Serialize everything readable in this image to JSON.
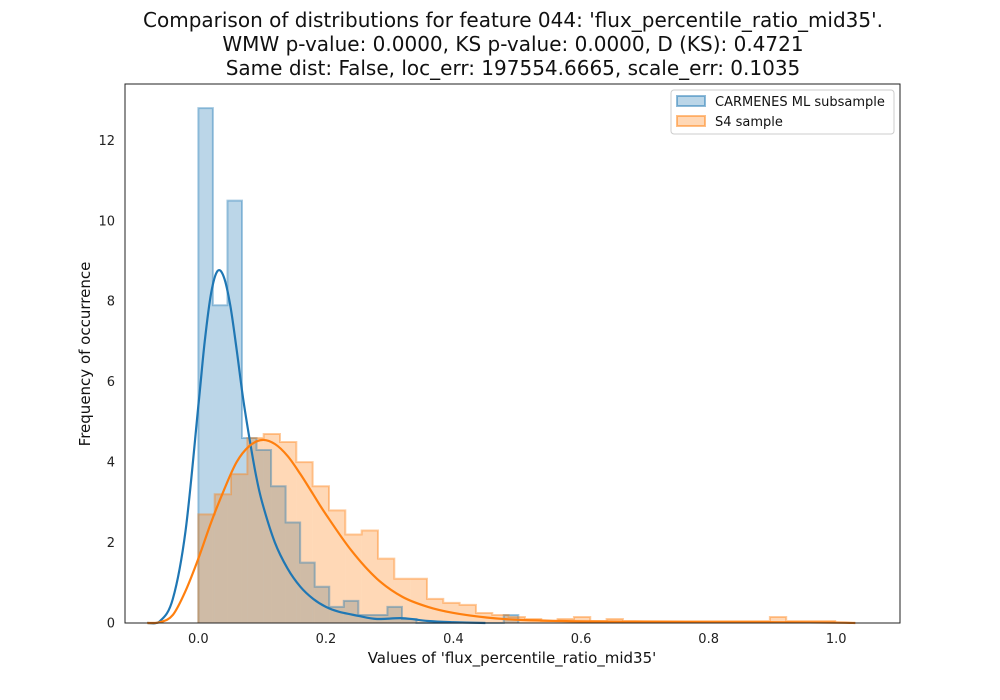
{
  "chart_data": {
    "type": "histogram",
    "title_lines": [
      "Comparison of distributions for feature 044: 'flux_percentile_ratio_mid35'.",
      "WMW p-value: 0.0000, KS p-value: 0.0000, D (KS): 0.4721",
      "Same dist: False, loc_err: 197554.6665, scale_err: 0.1035"
    ],
    "xlabel": "Values of 'flux_percentile_ratio_mid35'",
    "ylabel": "Frequency of occurrence",
    "xlim": [
      -0.115,
      1.1
    ],
    "ylim": [
      0,
      13.4
    ],
    "xticks": [
      0.0,
      0.2,
      0.4,
      0.6,
      0.8,
      1.0
    ],
    "xtick_labels": [
      "0.0",
      "0.2",
      "0.4",
      "0.6",
      "0.8",
      "1.0"
    ],
    "yticks": [
      0,
      2,
      4,
      6,
      8,
      10,
      12
    ],
    "ytick_labels": [
      "0",
      "2",
      "4",
      "6",
      "8",
      "10",
      "12"
    ],
    "grid": false,
    "legend_position": "top-right",
    "series": [
      {
        "name": "CARMENES ML subsample",
        "color": "#1f77b4",
        "bin_edges": [
          0.0,
          0.0228,
          0.0456,
          0.0684,
          0.0912,
          0.114,
          0.1368,
          0.1596,
          0.1824,
          0.2052,
          0.228,
          0.2508,
          0.2736,
          0.2964,
          0.3192,
          0.342,
          0.3648,
          0.3876,
          0.4104,
          0.4332,
          0.456,
          0.4788,
          0.5016
        ],
        "counts": [
          12.8,
          7.9,
          10.5,
          4.6,
          4.3,
          3.4,
          2.5,
          1.5,
          0.9,
          0.4,
          0.55,
          0.2,
          0.2,
          0.4,
          0.1,
          0.0,
          0.0,
          0.0,
          0.0,
          0.0,
          0.0,
          0.2
        ],
        "kde_x": [
          -0.08,
          -0.06,
          -0.04,
          -0.02,
          0.0,
          0.01,
          0.02,
          0.03,
          0.04,
          0.05,
          0.06,
          0.07,
          0.08,
          0.09,
          0.1,
          0.12,
          0.14,
          0.16,
          0.18,
          0.2,
          0.22,
          0.25,
          0.28,
          0.32,
          0.36,
          0.4,
          0.45
        ],
        "kde_y": [
          0.0,
          0.05,
          0.6,
          2.3,
          5.4,
          7.0,
          8.2,
          8.75,
          8.6,
          7.9,
          6.8,
          5.6,
          4.6,
          3.7,
          3.0,
          2.0,
          1.35,
          0.9,
          0.6,
          0.4,
          0.28,
          0.18,
          0.1,
          0.12,
          0.05,
          0.02,
          0.0
        ]
      },
      {
        "name": "S4 sample",
        "color": "#ff7f0e",
        "bin_edges": [
          0.0,
          0.0256,
          0.0512,
          0.0768,
          0.1024,
          0.128,
          0.1536,
          0.1792,
          0.2048,
          0.2304,
          0.256,
          0.2816,
          0.3072,
          0.3328,
          0.3584,
          0.384,
          0.4096,
          0.4352,
          0.4608,
          0.4864,
          0.512,
          0.5376,
          0.5632,
          0.5888,
          0.6144,
          0.64,
          0.6656,
          0.6912,
          0.7168,
          0.7424,
          0.768,
          0.7936,
          0.8192,
          0.8448,
          0.8704,
          0.896,
          0.9216,
          0.9472,
          0.9728,
          0.9984
        ],
        "counts": [
          2.7,
          3.2,
          3.7,
          4.6,
          4.7,
          4.5,
          4.0,
          3.4,
          2.8,
          2.2,
          2.3,
          1.6,
          1.1,
          1.1,
          0.6,
          0.5,
          0.45,
          0.25,
          0.2,
          0.15,
          0.1,
          0.05,
          0.1,
          0.15,
          0.05,
          0.1,
          0.05,
          0.05,
          0.05,
          0.05,
          0.05,
          0.05,
          0.05,
          0.05,
          0.05,
          0.15,
          0.05,
          0.05,
          0.05
        ],
        "kde_x": [
          -0.08,
          -0.06,
          -0.04,
          -0.02,
          0.0,
          0.02,
          0.04,
          0.06,
          0.08,
          0.1,
          0.12,
          0.14,
          0.16,
          0.18,
          0.2,
          0.24,
          0.28,
          0.32,
          0.36,
          0.4,
          0.45,
          0.5,
          0.6,
          0.7,
          0.8,
          0.9,
          1.0,
          1.03
        ],
        "kde_y": [
          0.0,
          0.02,
          0.2,
          0.8,
          1.6,
          2.5,
          3.3,
          4.0,
          4.4,
          4.55,
          4.45,
          4.15,
          3.7,
          3.2,
          2.7,
          1.8,
          1.1,
          0.65,
          0.4,
          0.25,
          0.14,
          0.08,
          0.04,
          0.03,
          0.02,
          0.02,
          0.01,
          0.0
        ]
      }
    ]
  }
}
